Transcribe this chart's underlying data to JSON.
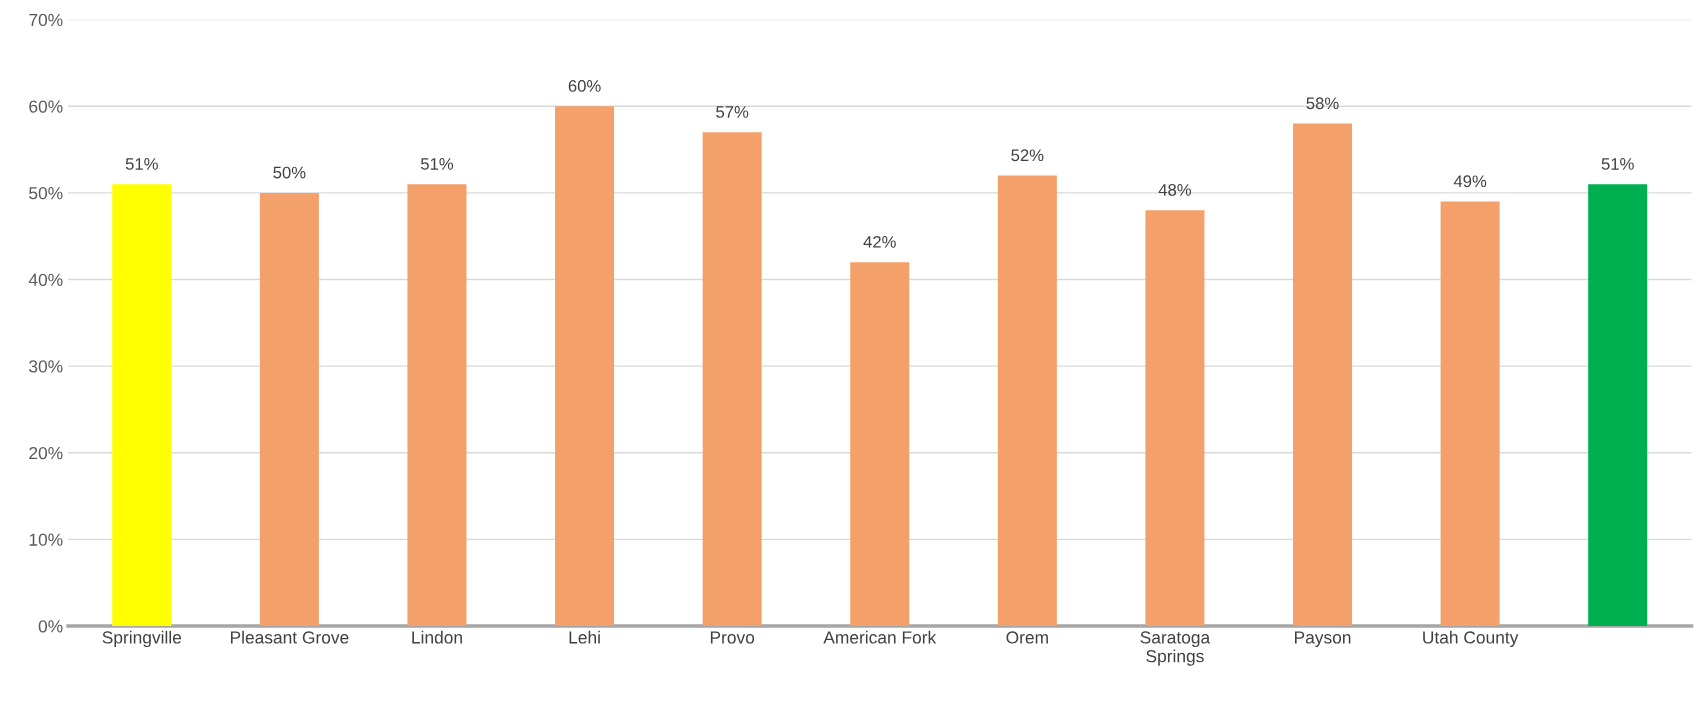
{
  "chart_data": {
    "type": "bar",
    "categories": [
      "Springville",
      "Pleasant Grove",
      "Lindon",
      "Lehi",
      "Provo",
      "American Fork",
      "Orem",
      "Saratoga\nSprings",
      "Payson",
      "Utah County",
      null
    ],
    "values": [
      51,
      50,
      51,
      60,
      57,
      42,
      52,
      48,
      58,
      49,
      51
    ],
    "colors": [
      "#ffff00",
      "#f4a06a",
      "#f4a06a",
      "#f4a06a",
      "#f4a06a",
      "#f4a06a",
      "#f4a06a",
      "#f4a06a",
      "#f4a06a",
      "#f4a06a",
      "#00b050"
    ],
    "value_labels": [
      "51%",
      "50%",
      "51%",
      "60%",
      "57%",
      "42%",
      "52%",
      "48%",
      "58%",
      "49%",
      "51%"
    ],
    "ylim": [
      0,
      70
    ],
    "yticks": [
      {
        "value": 0,
        "label": "0%"
      },
      {
        "value": 10,
        "label": "10%"
      },
      {
        "value": 20,
        "label": "20%"
      },
      {
        "value": 30,
        "label": "30%"
      },
      {
        "value": 40,
        "label": "40%"
      },
      {
        "value": 50,
        "label": "50%"
      },
      {
        "value": 60,
        "label": "60%"
      },
      {
        "value": 70,
        "label": "70%"
      }
    ],
    "grid": "y"
  }
}
